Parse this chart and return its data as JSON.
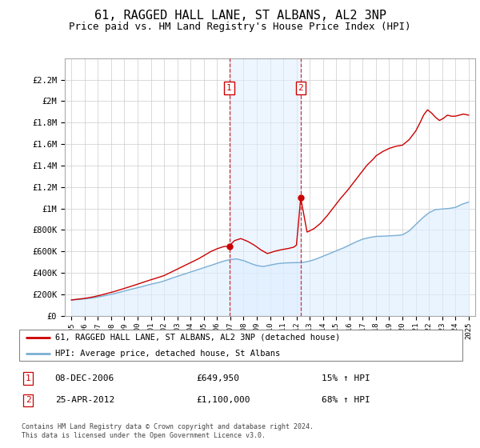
{
  "title": "61, RAGGED HALL LANE, ST ALBANS, AL2 3NP",
  "subtitle": "Price paid vs. HM Land Registry's House Price Index (HPI)",
  "title_fontsize": 11,
  "subtitle_fontsize": 9,
  "grid_color": "#cccccc",
  "line1_color": "#cc0000",
  "line2_color": "#7bafd4",
  "shade_color": "#ddeeff",
  "vline_color": "#cc0000",
  "marker_box_color": "#cc0000",
  "ylim": [
    0,
    2400000
  ],
  "yticks": [
    0,
    200000,
    400000,
    600000,
    800000,
    1000000,
    1200000,
    1400000,
    1600000,
    1800000,
    2000000,
    2200000
  ],
  "ytick_labels": [
    "£0",
    "£200K",
    "£400K",
    "£600K",
    "£800K",
    "£1M",
    "£1.2M",
    "£1.4M",
    "£1.6M",
    "£1.8M",
    "£2M",
    "£2.2M"
  ],
  "sale1_year": 2006.92,
  "sale1_price": 649950,
  "sale1_label": "1",
  "sale1_date": "08-DEC-2006",
  "sale1_price_str": "£649,950",
  "sale1_pct": "15% ↑ HPI",
  "sale2_year": 2012.32,
  "sale2_price": 1100000,
  "sale2_label": "2",
  "sale2_date": "25-APR-2012",
  "sale2_price_str": "£1,100,000",
  "sale2_pct": "68% ↑ HPI",
  "legend_line1": "61, RAGGED HALL LANE, ST ALBANS, AL2 3NP (detached house)",
  "legend_line2": "HPI: Average price, detached house, St Albans",
  "footer": "Contains HM Land Registry data © Crown copyright and database right 2024.\nThis data is licensed under the Open Government Licence v3.0.",
  "hpi_x": [
    1995.0,
    1995.5,
    1996.0,
    1996.5,
    1997.0,
    1997.5,
    1998.0,
    1998.5,
    1999.0,
    1999.5,
    2000.0,
    2000.5,
    2001.0,
    2001.5,
    2002.0,
    2002.5,
    2003.0,
    2003.5,
    2004.0,
    2004.5,
    2005.0,
    2005.5,
    2006.0,
    2006.5,
    2007.0,
    2007.5,
    2008.0,
    2008.5,
    2009.0,
    2009.5,
    2010.0,
    2010.5,
    2011.0,
    2011.5,
    2012.0,
    2012.5,
    2013.0,
    2013.5,
    2014.0,
    2014.5,
    2015.0,
    2015.5,
    2016.0,
    2016.5,
    2017.0,
    2017.5,
    2018.0,
    2018.5,
    2019.0,
    2019.5,
    2020.0,
    2020.5,
    2021.0,
    2021.5,
    2022.0,
    2022.5,
    2023.0,
    2023.5,
    2024.0,
    2024.5,
    2025.0
  ],
  "hpi_y": [
    148000,
    152000,
    158000,
    165000,
    175000,
    188000,
    200000,
    215000,
    232000,
    248000,
    262000,
    278000,
    295000,
    308000,
    325000,
    348000,
    368000,
    388000,
    408000,
    428000,
    448000,
    468000,
    490000,
    510000,
    525000,
    530000,
    515000,
    490000,
    468000,
    460000,
    472000,
    485000,
    492000,
    495000,
    495000,
    498000,
    510000,
    530000,
    555000,
    580000,
    605000,
    630000,
    660000,
    690000,
    715000,
    730000,
    740000,
    742000,
    745000,
    748000,
    755000,
    790000,
    850000,
    910000,
    960000,
    990000,
    995000,
    1000000,
    1010000,
    1040000,
    1060000
  ],
  "prop_x": [
    1995.0,
    1995.5,
    1996.0,
    1996.5,
    1997.0,
    1997.5,
    1998.0,
    1998.5,
    1999.0,
    1999.5,
    2000.0,
    2000.5,
    2001.0,
    2001.5,
    2002.0,
    2002.5,
    2003.0,
    2003.5,
    2004.0,
    2004.5,
    2005.0,
    2005.5,
    2006.0,
    2006.5,
    2006.92,
    2007.3,
    2007.8,
    2008.3,
    2008.8,
    2009.3,
    2009.8,
    2010.3,
    2010.8,
    2011.3,
    2011.8,
    2012.0,
    2012.32,
    2012.8,
    2013.3,
    2013.8,
    2014.3,
    2014.8,
    2015.3,
    2015.8,
    2016.3,
    2016.8,
    2017.3,
    2017.8,
    2018.0,
    2018.5,
    2019.0,
    2019.5,
    2020.0,
    2020.5,
    2021.0,
    2021.3,
    2021.6,
    2021.9,
    2022.2,
    2022.5,
    2022.8,
    2023.1,
    2023.4,
    2023.7,
    2024.0,
    2024.3,
    2024.6,
    2025.0
  ],
  "prop_y": [
    148000,
    155000,
    163000,
    173000,
    186000,
    202000,
    218000,
    236000,
    256000,
    275000,
    295000,
    316000,
    336000,
    355000,
    375000,
    405000,
    435000,
    465000,
    495000,
    525000,
    560000,
    598000,
    625000,
    645000,
    649950,
    700000,
    720000,
    695000,
    660000,
    615000,
    580000,
    600000,
    615000,
    625000,
    640000,
    660000,
    1100000,
    780000,
    810000,
    860000,
    930000,
    1010000,
    1090000,
    1160000,
    1240000,
    1320000,
    1400000,
    1460000,
    1490000,
    1530000,
    1560000,
    1580000,
    1590000,
    1640000,
    1720000,
    1790000,
    1870000,
    1920000,
    1890000,
    1850000,
    1820000,
    1840000,
    1870000,
    1860000,
    1860000,
    1870000,
    1880000,
    1870000
  ]
}
